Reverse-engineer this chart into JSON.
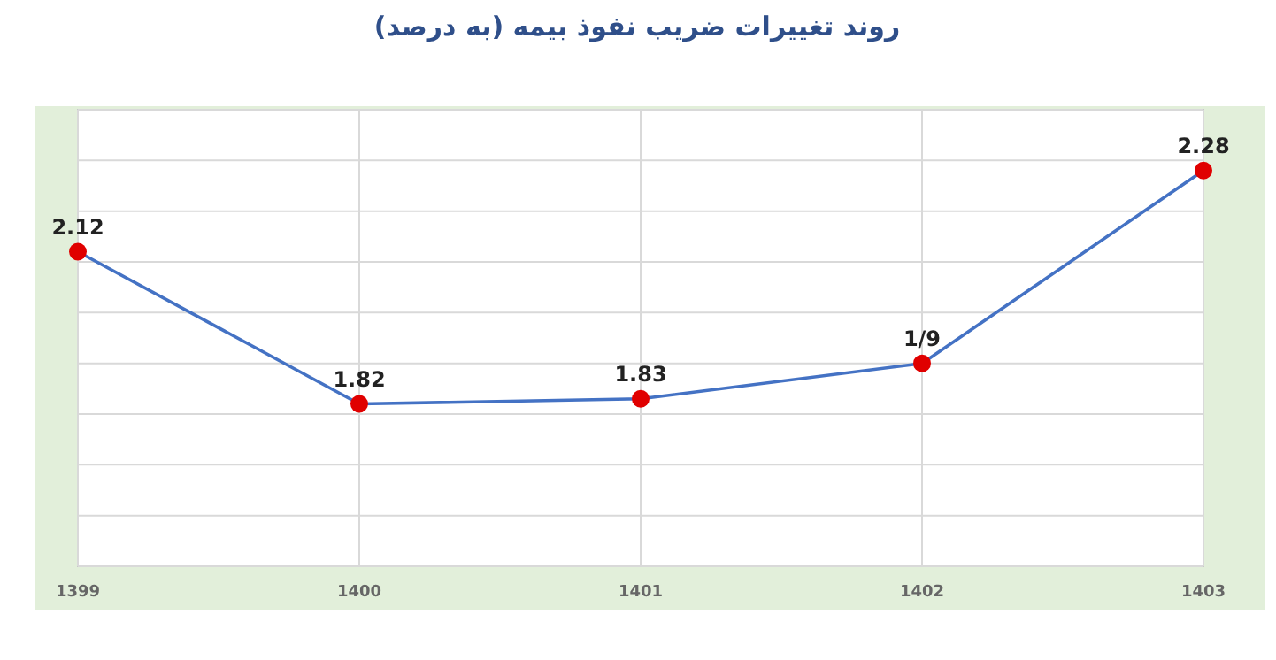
{
  "chart_data": {
    "type": "line",
    "title": "روند تغییرات ضریب نفوذ بیمه (به درصد)",
    "categories": [
      "1399",
      "1400",
      "1401",
      "1402",
      "1403"
    ],
    "values": [
      2.12,
      1.82,
      1.83,
      1.9,
      2.28
    ],
    "value_labels": [
      "2.12",
      "1.82",
      "1.83",
      "1/9",
      "2.28"
    ],
    "color": "#4472c4",
    "colors": [
      "#e00000",
      "#e00000",
      "#e00000",
      "#e00000",
      "#e00000"
    ],
    "marker": "circle",
    "line_style": "solid",
    "ylim": [
      1.5,
      2.4
    ],
    "yticks": [
      {
        "value": 1.5,
        "label": null
      },
      {
        "value": 1.6,
        "label": null
      },
      {
        "value": 1.7,
        "label": null
      },
      {
        "value": 1.8,
        "label": null
      },
      {
        "value": 1.9,
        "label": null
      },
      {
        "value": 2.0,
        "label": null
      },
      {
        "value": 2.1,
        "label": null
      },
      {
        "value": 2.2,
        "label": null
      },
      {
        "value": 2.3,
        "label": null
      },
      {
        "value": 2.4,
        "label": null
      }
    ],
    "tick_labels": "x",
    "grid": true
  }
}
